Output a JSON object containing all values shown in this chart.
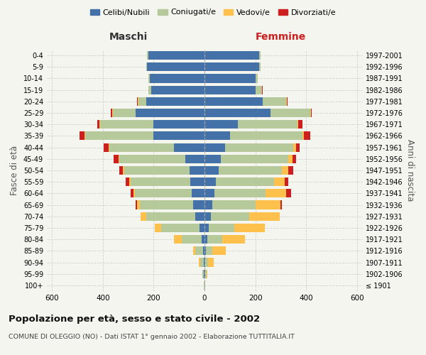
{
  "age_groups": [
    "100+",
    "95-99",
    "90-94",
    "85-89",
    "80-84",
    "75-79",
    "70-74",
    "65-69",
    "60-64",
    "55-59",
    "50-54",
    "45-49",
    "40-44",
    "35-39",
    "30-34",
    "25-29",
    "20-24",
    "15-19",
    "10-14",
    "5-9",
    "0-4"
  ],
  "birth_years": [
    "≤ 1901",
    "1902-1906",
    "1907-1911",
    "1912-1916",
    "1917-1921",
    "1922-1926",
    "1927-1931",
    "1932-1936",
    "1937-1941",
    "1942-1946",
    "1947-1951",
    "1952-1956",
    "1957-1961",
    "1962-1966",
    "1967-1971",
    "1972-1976",
    "1977-1981",
    "1982-1986",
    "1987-1991",
    "1992-1996",
    "1997-2001"
  ],
  "maschi": {
    "celibi": [
      0,
      2,
      3,
      5,
      10,
      20,
      35,
      45,
      50,
      55,
      60,
      75,
      120,
      200,
      200,
      270,
      230,
      210,
      215,
      225,
      220
    ],
    "coniugati": [
      2,
      5,
      15,
      30,
      80,
      150,
      195,
      210,
      225,
      235,
      255,
      260,
      255,
      270,
      210,
      90,
      30,
      10,
      5,
      5,
      5
    ],
    "vedovi": [
      0,
      2,
      5,
      10,
      30,
      25,
      20,
      10,
      5,
      5,
      5,
      3,
      3,
      3,
      2,
      3,
      2,
      1,
      0,
      0,
      0
    ],
    "divorziati": [
      0,
      0,
      0,
      0,
      0,
      0,
      0,
      5,
      10,
      15,
      15,
      20,
      18,
      18,
      10,
      5,
      3,
      1,
      0,
      0,
      0
    ]
  },
  "femmine": {
    "nubili": [
      0,
      2,
      3,
      5,
      10,
      18,
      25,
      30,
      40,
      45,
      55,
      65,
      80,
      100,
      130,
      260,
      230,
      200,
      200,
      215,
      215
    ],
    "coniugate": [
      2,
      5,
      12,
      25,
      60,
      100,
      150,
      170,
      200,
      230,
      250,
      265,
      270,
      285,
      235,
      155,
      90,
      25,
      10,
      5,
      5
    ],
    "vedove": [
      0,
      5,
      20,
      55,
      90,
      120,
      120,
      100,
      80,
      40,
      25,
      15,
      10,
      5,
      5,
      3,
      3,
      2,
      0,
      0,
      0
    ],
    "divorziate": [
      0,
      0,
      0,
      0,
      0,
      0,
      0,
      5,
      20,
      15,
      20,
      15,
      15,
      25,
      15,
      5,
      3,
      1,
      0,
      0,
      0
    ]
  },
  "colors": {
    "celibi": "#4472a8",
    "coniugati": "#b5c99a",
    "vedovi": "#ffc04c",
    "divorziati": "#cc2020"
  },
  "xlim": 620,
  "title": "Popolazione per età, sesso e stato civile - 2002",
  "subtitle": "COMUNE DI OLEGGIO (NO) - Dati ISTAT 1° gennaio 2002 - Elaborazione TUTTITALIA.IT",
  "ylabel_left": "Fasce di età",
  "ylabel_right": "Anni di nascita",
  "xlabel_maschi": "Maschi",
  "xlabel_femmine": "Femmine",
  "bg_color": "#f5f5f0",
  "grid_color": "#cccccc"
}
